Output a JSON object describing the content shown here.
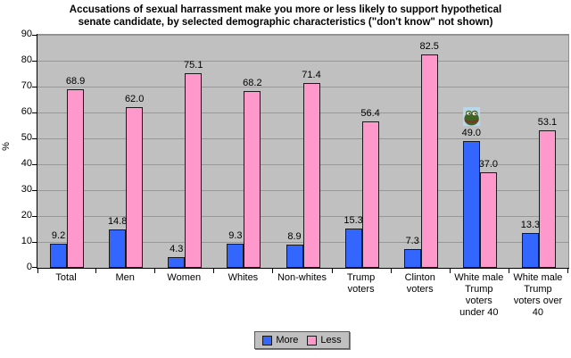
{
  "chart_data": {
    "type": "bar",
    "title": "Accusations of sexual harrassment make you more or less likely to support hypothetical senate candidate, by selected demographic characteristics (\"don't know\" not shown)",
    "title_lines": [
      "Accusations of sexual harrassment make you more or less likely to support hypothetical",
      "senate candidate, by selected demographic characteristics (\"don't know\" not shown)"
    ],
    "xlabel": "",
    "ylabel": "%",
    "ylim": [
      0,
      90
    ],
    "ytick_step": 10,
    "yticks": [
      0,
      10,
      20,
      30,
      40,
      50,
      60,
      70,
      80,
      90
    ],
    "grid": true,
    "legend_position": "bottom",
    "plot_bg_color": "#C0C0C0",
    "gridline_color": "#989898",
    "bar_border_color": "#1A1A1A",
    "categories": [
      "Total",
      "Men",
      "Women",
      "Whites",
      "Non-whites",
      "Trump voters",
      "Clinton voters",
      "White male Trump voters under 40",
      "White male Trump voters over 40"
    ],
    "category_label_lines": [
      [
        "Total"
      ],
      [
        "Men"
      ],
      [
        "Women"
      ],
      [
        "Whites"
      ],
      [
        "Non-whites"
      ],
      [
        "Trump",
        "voters"
      ],
      [
        "Clinton",
        "voters"
      ],
      [
        "White male",
        "Trump",
        "voters",
        "under 40"
      ],
      [
        "White male",
        "Trump",
        "voters over",
        "40"
      ]
    ],
    "series": [
      {
        "name": "More",
        "color": "#3366FF",
        "values": [
          9.2,
          14.8,
          4.3,
          9.3,
          8.9,
          15.3,
          7.3,
          49.0,
          13.3
        ]
      },
      {
        "name": "Less",
        "color": "#FF99CC",
        "values": [
          68.9,
          62.0,
          75.1,
          68.2,
          71.4,
          56.4,
          82.5,
          37.0,
          53.1
        ]
      }
    ],
    "value_label_decimals": 1,
    "legend": {
      "items": [
        {
          "label": "More",
          "color": "#3366FF"
        },
        {
          "label": "Less",
          "color": "#FF99CC"
        }
      ]
    },
    "annotations": [
      {
        "icon": "pepe-frog-icon",
        "category_index": 7,
        "series": "More"
      }
    ]
  }
}
